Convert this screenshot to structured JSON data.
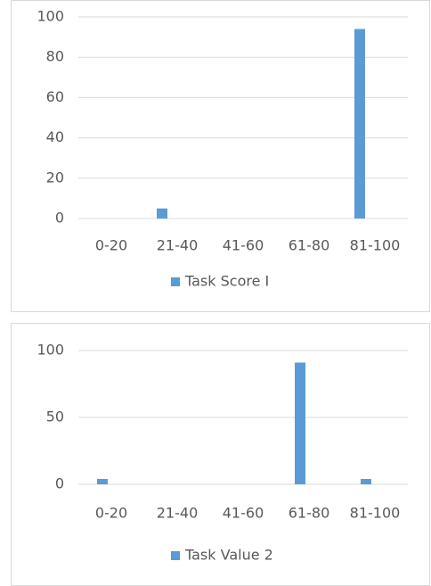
{
  "chart_data": [
    {
      "type": "bar",
      "categories": [
        "0-20",
        "21-40",
        "41-60",
        "61-80",
        "81-100"
      ],
      "series": [
        {
          "name": "Task Score I",
          "color": "#5b9bd5",
          "values": [
            0,
            5,
            0,
            0,
            94
          ]
        }
      ],
      "ylim": [
        0,
        100
      ],
      "yticks": [
        0,
        20,
        40,
        60,
        80,
        100
      ],
      "grid": true,
      "legend": "bottom"
    },
    {
      "type": "bar",
      "categories": [
        "0-20",
        "21-40",
        "41-60",
        "61-80",
        "81-100"
      ],
      "series": [
        {
          "name": "Task Value 2",
          "color": "#5b9bd5",
          "values": [
            4,
            0,
            0,
            91,
            4
          ]
        }
      ],
      "ylim": [
        0,
        100
      ],
      "yticks": [
        0,
        50,
        100
      ],
      "grid": true,
      "legend": "bottom"
    }
  ]
}
